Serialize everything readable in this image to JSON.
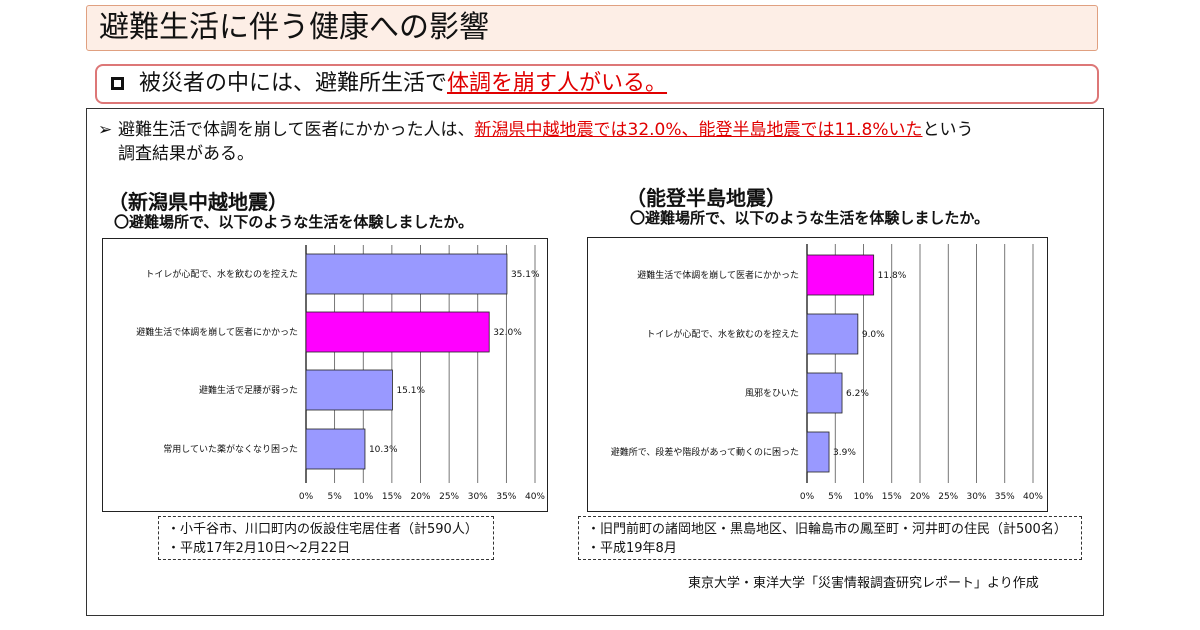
{
  "page": {
    "title": "避難生活に伴う健康への影響",
    "subtitle_prefix": "被災者の中には、避難所生活で",
    "subtitle_highlight": "体調を崩す人がいる。",
    "intro_prefix": "避難生活で体調を崩して医者にかかった人は、",
    "intro_highlight": "新潟県中越地震では32.0%、能登半島地震では11.8%いた",
    "intro_suffix": "という",
    "intro_line2": "調査結果がある。",
    "source": "東京大学・東洋大学「災害情報調査研究レポート」より作成"
  },
  "left": {
    "heading": "（新潟県中越地震）",
    "question": "〇避難場所で、以下のような生活を体験しましたか。",
    "notes": [
      "・小千谷市、川口町内の仮設住宅居住者（計590人）",
      "・平成17年2月10日～2月22日"
    ]
  },
  "right": {
    "heading": "（能登半島地震）",
    "question": "〇避難場所で、以下のような生活を体験しましたか。",
    "notes": [
      "・旧門前町の諸岡地区・黒島地区、旧輪島市の鳳至町・河井町の住民（計500名）",
      "・平成19年8月"
    ]
  },
  "colors": {
    "default_bar": "#9999ff",
    "highlight_bar": "#ff00ff"
  },
  "chart_data": [
    {
      "type": "bar",
      "orientation": "horizontal",
      "categories": [
        "トイレが心配で、水を飲むのを控えた",
        "避難生活で体調を崩して医者にかかった",
        "避難生活で足腰が弱った",
        "常用していた薬がなくなり困った"
      ],
      "values": [
        35.1,
        32.0,
        15.1,
        10.3
      ],
      "value_labels": [
        "35.1%",
        "32.0%",
        "15.1%",
        "10.3%"
      ],
      "highlight_index": 1,
      "xlim": [
        0,
        40
      ],
      "xticks": [
        "0%",
        "5%",
        "10%",
        "15%",
        "20%",
        "25%",
        "30%",
        "35%",
        "40%"
      ],
      "grid": true
    },
    {
      "type": "bar",
      "orientation": "horizontal",
      "categories": [
        "避難生活で体調を崩して医者にかかった",
        "トイレが心配で、水を飲むのを控えた",
        "風邪をひいた",
        "避難所で、段差や階段があって動くのに困った"
      ],
      "values": [
        11.8,
        9.0,
        6.2,
        3.9
      ],
      "value_labels": [
        "11.8%",
        "9.0%",
        "6.2%",
        "3.9%"
      ],
      "highlight_index": 0,
      "xlim": [
        0,
        40
      ],
      "xticks": [
        "0%",
        "5%",
        "10%",
        "15%",
        "20%",
        "25%",
        "30%",
        "35%",
        "40%"
      ],
      "grid": true
    }
  ]
}
